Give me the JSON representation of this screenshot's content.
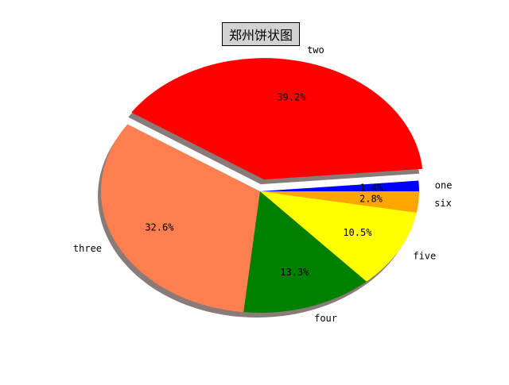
{
  "chart_data": {
    "type": "pie",
    "title": "郑州饼状图",
    "slices": [
      {
        "label": "one",
        "percent": 1.4,
        "percent_label": "1.4%",
        "color": "#0000ff",
        "exploded": false
      },
      {
        "label": "two",
        "percent": 39.2,
        "percent_label": "39.2%",
        "color": "#ff0000",
        "exploded": true
      },
      {
        "label": "three",
        "percent": 32.6,
        "percent_label": "32.6%",
        "color": "#ff7f50",
        "exploded": false
      },
      {
        "label": "four",
        "percent": 13.3,
        "percent_label": "13.3%",
        "color": "#008000",
        "exploded": false
      },
      {
        "label": "five",
        "percent": 10.5,
        "percent_label": "10.5%",
        "color": "#ffff00",
        "exploded": false
      },
      {
        "label": "six",
        "percent": 2.8,
        "percent_label": "2.8%",
        "color": "#ffa500",
        "exploded": false
      }
    ],
    "shadow": true,
    "counterclockwise": true
  }
}
